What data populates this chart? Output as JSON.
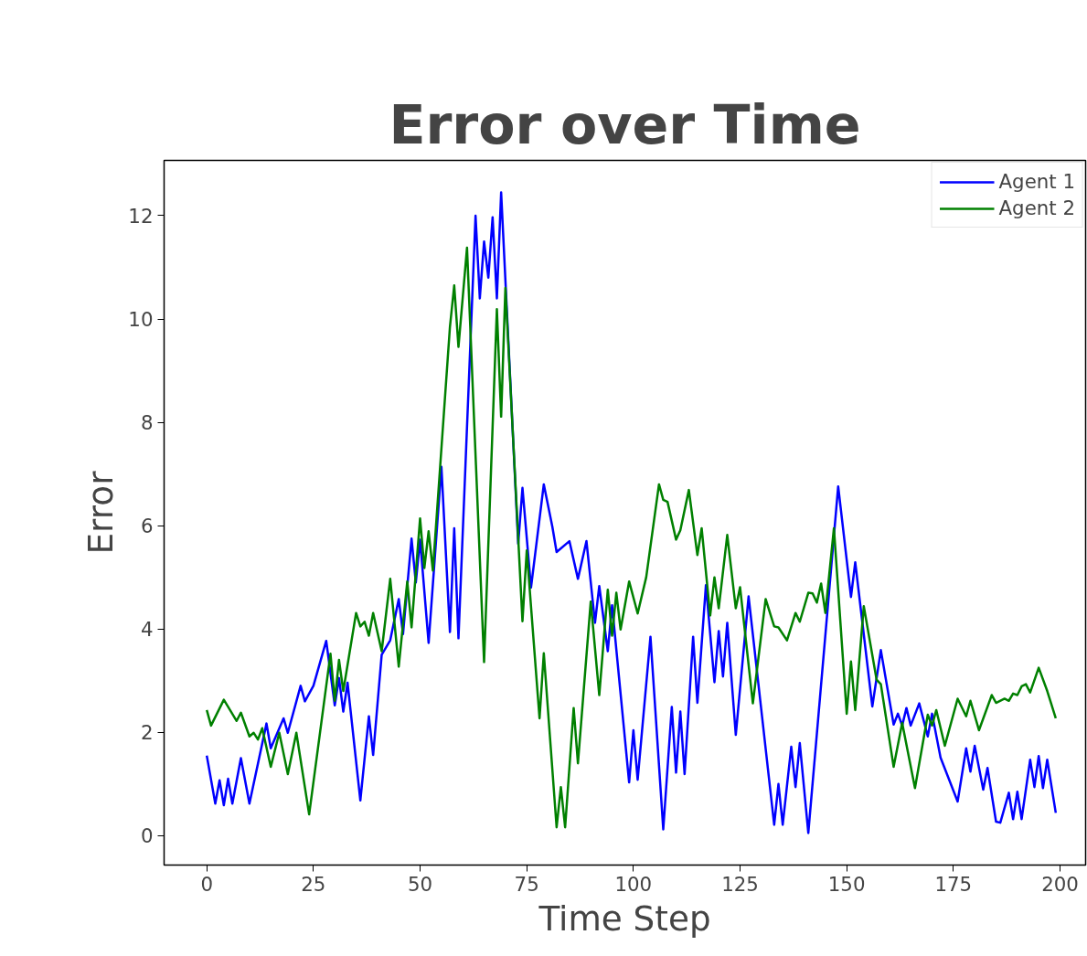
{
  "chart_data": {
    "type": "line",
    "title": "Error over Time",
    "xlabel": "Time Step",
    "ylabel": "Error",
    "xlim": [
      -10,
      206
    ],
    "ylim": [
      -0.57,
      13.07
    ],
    "xticks": [
      0,
      25,
      50,
      75,
      100,
      125,
      150,
      175,
      200
    ],
    "yticks": [
      0,
      2,
      4,
      6,
      8,
      10,
      12
    ],
    "grid": false,
    "legend": "top right",
    "line_style": "solid",
    "series": [
      {
        "name": "Agent 1",
        "color": "#0000ff",
        "x": [
          0,
          2,
          3,
          4,
          5,
          6,
          8,
          10,
          14,
          15,
          18,
          19,
          22,
          23,
          25,
          28,
          30,
          31,
          32,
          33,
          36,
          38,
          39,
          41,
          43,
          45,
          46,
          48,
          49,
          50,
          52,
          55,
          57,
          58,
          59,
          63,
          64,
          65,
          66,
          67,
          68,
          69,
          73,
          74,
          76,
          79,
          81,
          82,
          85,
          87,
          89,
          91,
          92,
          94,
          95,
          99,
          100,
          101,
          104,
          107,
          109,
          110,
          111,
          112,
          114,
          115,
          117,
          119,
          120,
          121,
          122,
          124,
          127,
          133,
          134,
          135,
          137,
          138,
          139,
          141,
          148,
          151,
          152,
          156,
          158,
          161,
          162,
          163,
          164,
          165,
          167,
          169,
          170,
          172,
          176,
          178,
          179,
          180,
          182,
          183,
          185,
          186,
          188,
          189,
          190,
          191,
          193,
          194,
          195,
          196,
          197,
          199
        ],
        "values": [
          1.55,
          0.62,
          1.07,
          0.59,
          1.1,
          0.62,
          1.5,
          0.62,
          2.17,
          1.69,
          2.27,
          1.99,
          2.9,
          2.6,
          2.9,
          3.77,
          2.52,
          3.05,
          2.4,
          2.96,
          0.68,
          2.31,
          1.56,
          3.5,
          3.78,
          4.58,
          3.9,
          5.75,
          4.9,
          5.73,
          3.73,
          7.14,
          3.94,
          5.95,
          3.82,
          12.0,
          10.4,
          11.5,
          10.8,
          11.97,
          10.4,
          12.45,
          5.65,
          6.73,
          4.8,
          6.8,
          5.98,
          5.49,
          5.7,
          4.97,
          5.7,
          4.12,
          4.83,
          3.57,
          4.46,
          1.03,
          2.04,
          1.08,
          3.85,
          0.12,
          2.49,
          1.22,
          2.4,
          1.19,
          3.85,
          2.57,
          4.85,
          2.97,
          3.96,
          3.08,
          4.12,
          1.95,
          4.63,
          0.21,
          1.0,
          0.21,
          1.72,
          0.94,
          1.79,
          0.05,
          6.76,
          4.62,
          5.29,
          2.5,
          3.59,
          2.15,
          2.36,
          2.13,
          2.47,
          2.13,
          2.56,
          1.92,
          2.36,
          1.51,
          0.66,
          1.69,
          1.24,
          1.74,
          0.89,
          1.31,
          0.27,
          0.25,
          0.83,
          0.32,
          0.85,
          0.32,
          1.47,
          0.94,
          1.54,
          0.92,
          1.47,
          0.44
        ]
      },
      {
        "name": "Agent 2",
        "color": "#008000",
        "x": [
          0,
          1,
          4,
          7,
          8,
          10,
          11,
          12,
          13,
          15,
          17,
          19,
          21,
          24,
          29,
          30,
          31,
          32,
          35,
          36,
          37,
          38,
          39,
          41,
          43,
          45,
          47,
          48,
          50,
          51,
          52,
          53,
          57,
          58,
          59,
          61,
          65,
          68,
          69,
          70,
          74,
          75,
          78,
          79,
          82,
          83,
          84,
          86,
          87,
          90,
          92,
          94,
          95,
          96,
          97,
          99,
          101,
          103,
          106,
          107,
          108,
          110,
          111,
          113,
          115,
          116,
          118,
          119,
          120,
          122,
          124,
          125,
          128,
          131,
          133,
          134,
          136,
          138,
          139,
          141,
          142,
          143,
          144,
          145,
          147,
          150,
          151,
          152,
          154,
          157,
          158,
          161,
          163,
          166,
          169,
          170,
          171,
          173,
          176,
          178,
          179,
          181,
          184,
          185,
          187,
          188,
          189,
          190,
          191,
          192,
          193,
          195,
          197,
          199
        ],
        "values": [
          2.43,
          2.13,
          2.63,
          2.22,
          2.38,
          1.92,
          1.99,
          1.86,
          2.08,
          1.33,
          1.99,
          1.19,
          1.99,
          0.41,
          3.52,
          2.61,
          3.4,
          2.8,
          4.31,
          4.05,
          4.14,
          3.87,
          4.31,
          3.57,
          4.97,
          3.27,
          4.92,
          4.03,
          6.14,
          5.18,
          5.89,
          5.13,
          9.85,
          10.65,
          9.46,
          11.38,
          3.36,
          10.19,
          8.11,
          10.6,
          4.15,
          5.52,
          2.27,
          3.53,
          0.16,
          0.94,
          0.16,
          2.47,
          1.4,
          4.53,
          2.72,
          4.76,
          3.87,
          4.7,
          3.99,
          4.92,
          4.3,
          5.0,
          6.8,
          6.5,
          6.46,
          5.73,
          5.91,
          6.69,
          5.43,
          5.95,
          4.26,
          5.0,
          4.4,
          5.82,
          4.4,
          4.81,
          2.56,
          4.58,
          4.05,
          4.03,
          3.78,
          4.31,
          4.14,
          4.7,
          4.69,
          4.51,
          4.88,
          4.31,
          5.95,
          2.36,
          3.37,
          2.43,
          4.44,
          3.02,
          2.93,
          1.33,
          2.18,
          0.92,
          2.34,
          2.13,
          2.43,
          1.74,
          2.65,
          2.31,
          2.61,
          2.04,
          2.72,
          2.57,
          2.65,
          2.61,
          2.75,
          2.72,
          2.89,
          2.93,
          2.77,
          3.25,
          2.8,
          2.27
        ]
      }
    ]
  }
}
